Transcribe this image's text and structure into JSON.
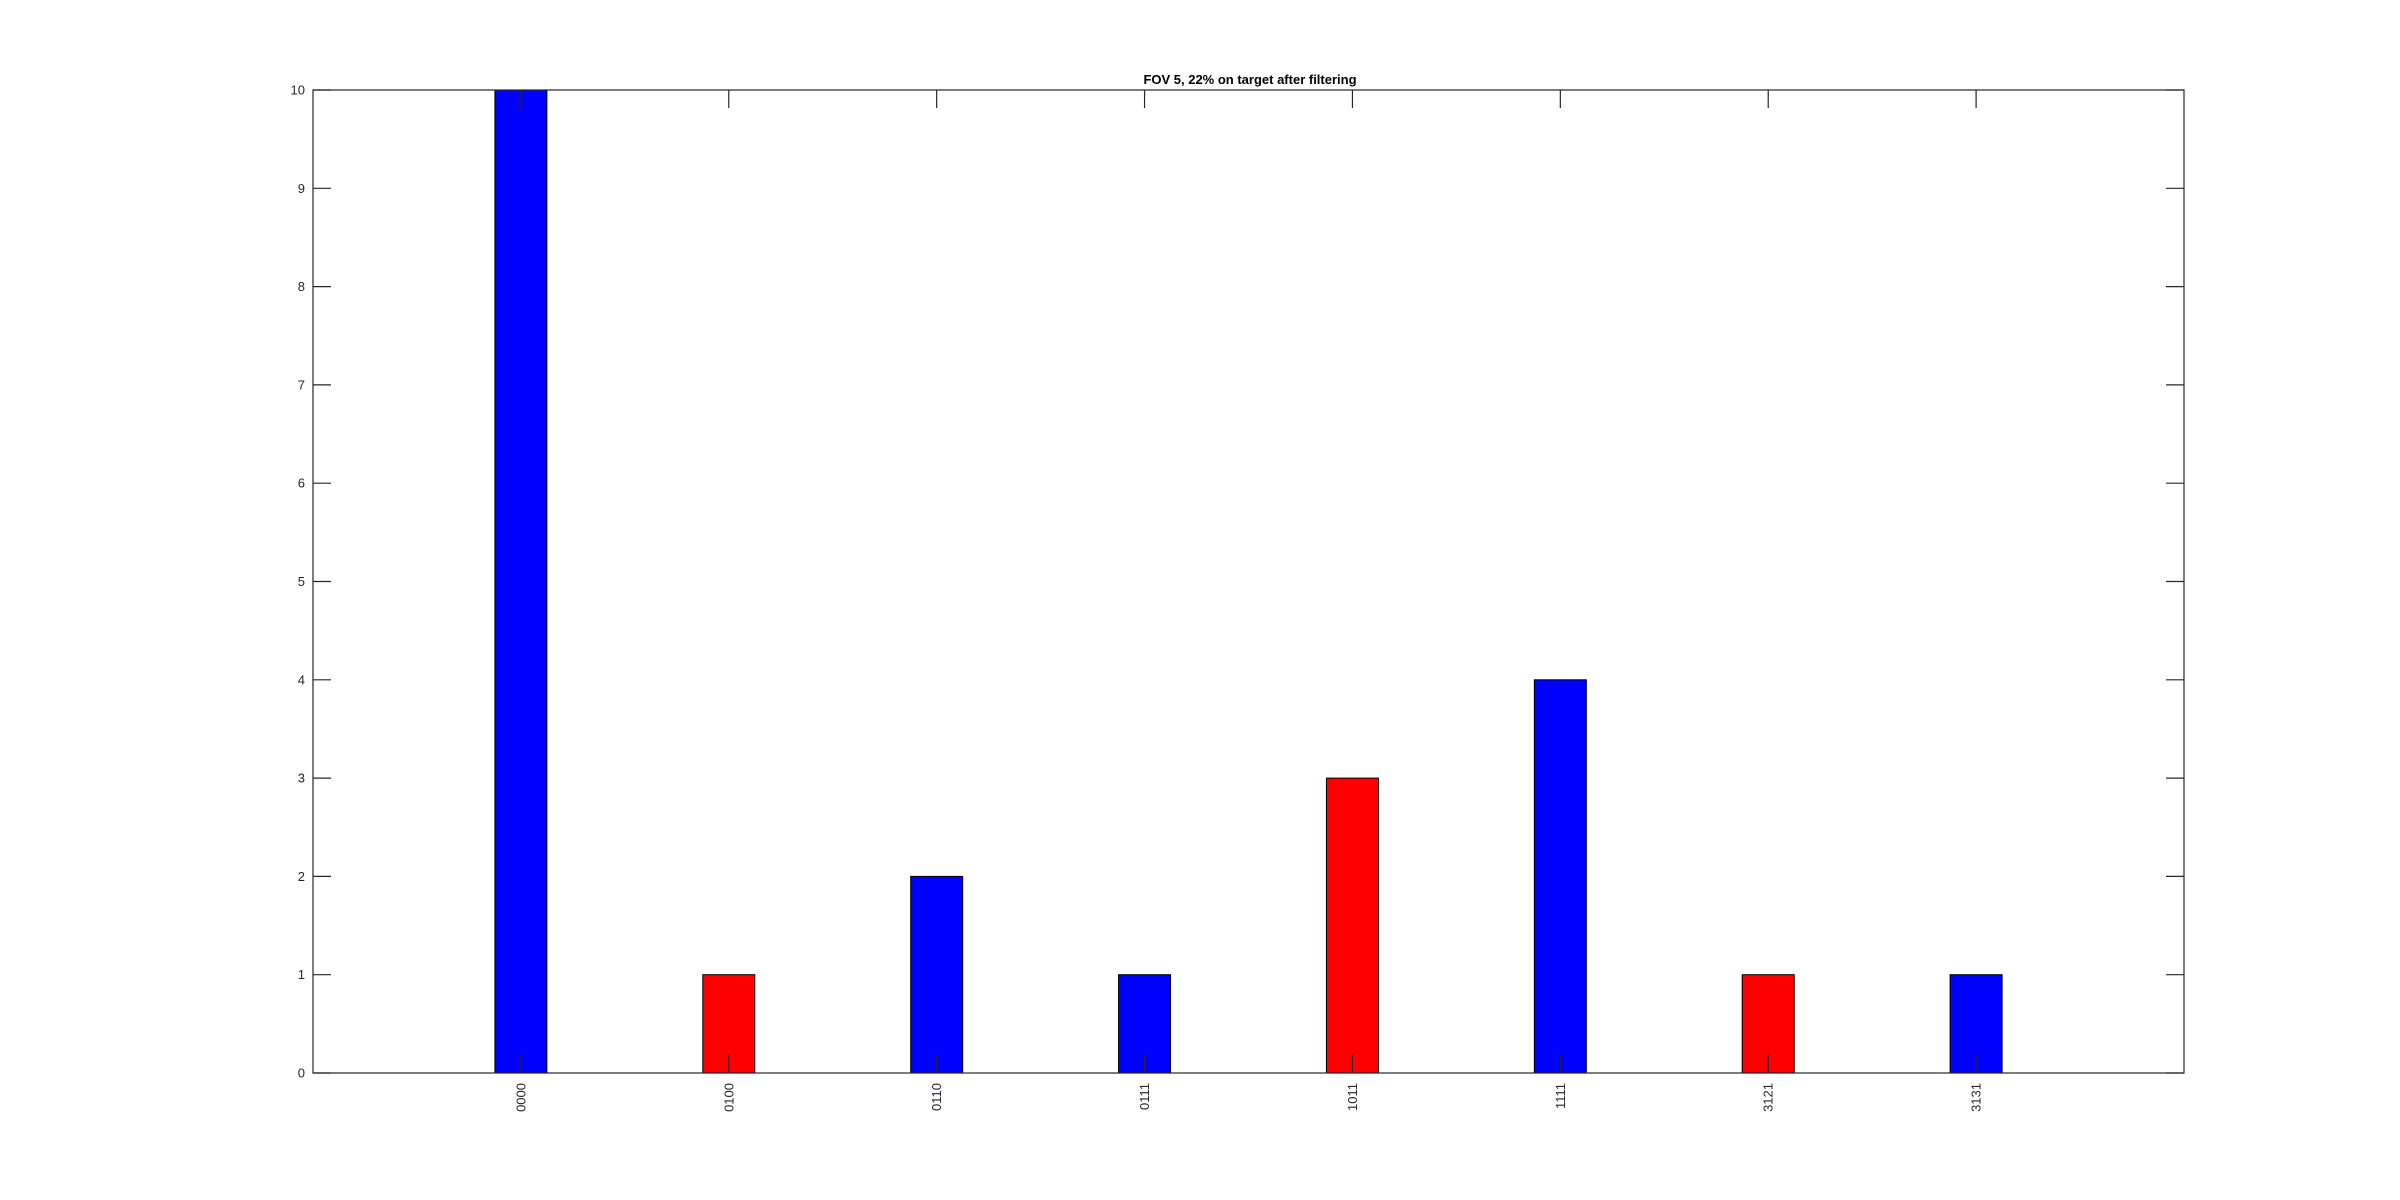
{
  "chart_data": {
    "type": "bar",
    "title": "FOV 5, 22% on target after filtering",
    "xlabel": "",
    "ylabel": "",
    "categories": [
      "0000",
      "0100",
      "0110",
      "0111",
      "1011",
      "1111",
      "3121",
      "3131"
    ],
    "values": [
      10,
      1,
      2,
      1,
      3,
      4,
      1,
      1
    ],
    "bar_colors": [
      "#0000ff",
      "#ff0000",
      "#0000ff",
      "#0000ff",
      "#ff0000",
      "#0000ff",
      "#ff0000",
      "#0000ff"
    ],
    "ylim": [
      0,
      10
    ],
    "yticks": [
      0,
      1,
      2,
      3,
      4,
      5,
      6,
      7,
      8,
      9,
      10
    ],
    "grid": false,
    "legend": "none",
    "colors": {
      "blue": "#0000ff",
      "red": "#ff0000",
      "axis": "#262626",
      "background": "#ffffff"
    }
  }
}
